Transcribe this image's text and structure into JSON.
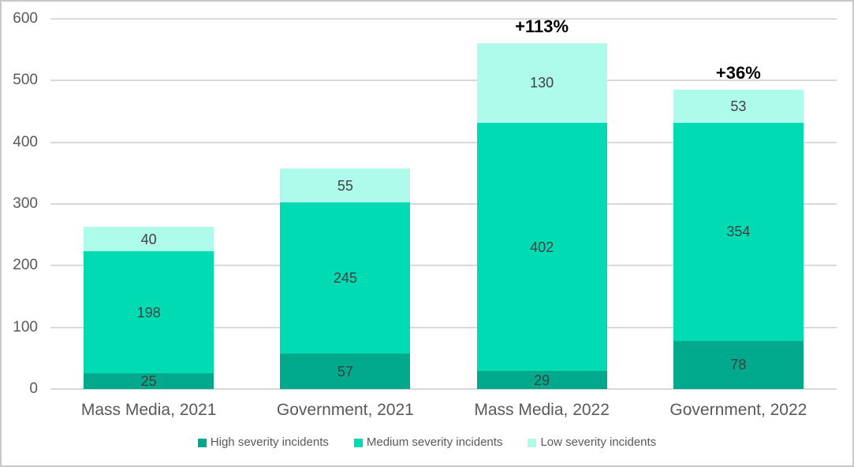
{
  "chart_data": {
    "type": "bar",
    "stacked": true,
    "title": "",
    "xlabel": "",
    "ylabel": "",
    "categories": [
      "Mass Media, 2021",
      "Government, 2021",
      "Mass Media, 2022",
      "Government, 2022"
    ],
    "series": [
      {
        "name": "High severity incidents",
        "color": "#00A88C",
        "values": [
          25,
          57,
          29,
          78
        ]
      },
      {
        "name": "Medium severity incidents",
        "color": "#00DBB3",
        "values": [
          198,
          245,
          402,
          354
        ]
      },
      {
        "name": "Low severity incidents",
        "color": "#AEFBEB",
        "values": [
          40,
          55,
          130,
          53
        ]
      }
    ],
    "totals": [
      263,
      357,
      561,
      485
    ],
    "annotations": [
      {
        "category_index": 2,
        "text": "+113%"
      },
      {
        "category_index": 3,
        "text": "+36%"
      }
    ],
    "y_axis": {
      "min": 0,
      "max": 600,
      "step": 100,
      "tick_labels": [
        "0",
        "100",
        "200",
        "300",
        "400",
        "500",
        "600"
      ]
    },
    "grid": true,
    "legend_position": "bottom"
  },
  "colors": {
    "grid": "#D9D9D9",
    "axis_text": "#595959",
    "data_label": "#404040",
    "annotation": "#000000",
    "background": "#FFFFFF",
    "border": "#C8C8C8"
  }
}
